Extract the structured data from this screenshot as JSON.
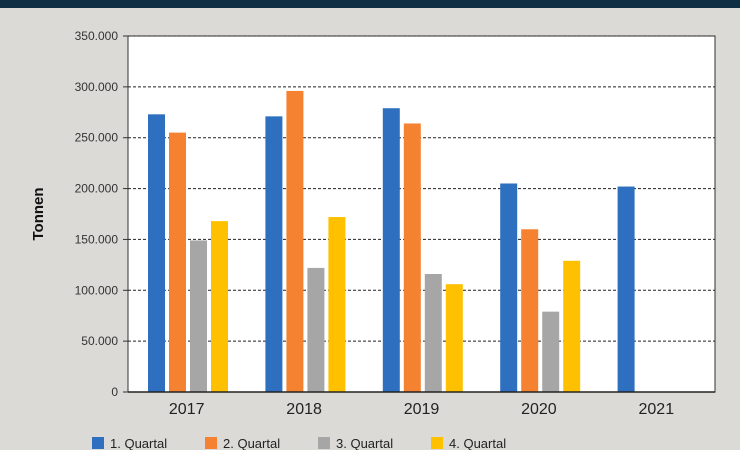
{
  "chart_data": {
    "type": "bar",
    "ylabel": "Tonnen",
    "xlabel": "",
    "categories": [
      "2017",
      "2018",
      "2019",
      "2020",
      "2021"
    ],
    "ylim": [
      0,
      350000
    ],
    "yticks": [
      "0",
      "50.000",
      "100.000",
      "150.000",
      "200.000",
      "250.000",
      "300.000",
      "350.000"
    ],
    "grid": true,
    "legend_position": "bottom",
    "series": [
      {
        "name": "1. Quartal",
        "color": "#2f6fbf",
        "values": [
          273000,
          271000,
          279000,
          205000,
          202000
        ]
      },
      {
        "name": "2. Quartal",
        "color": "#f58231",
        "values": [
          255000,
          296000,
          264000,
          160000,
          null
        ]
      },
      {
        "name": "3. Quartal",
        "color": "#a6a6a6",
        "values": [
          149000,
          122000,
          116000,
          79000,
          null
        ]
      },
      {
        "name": "4. Quartal",
        "color": "#ffc000",
        "values": [
          168000,
          172000,
          106000,
          129000,
          null
        ]
      }
    ]
  }
}
